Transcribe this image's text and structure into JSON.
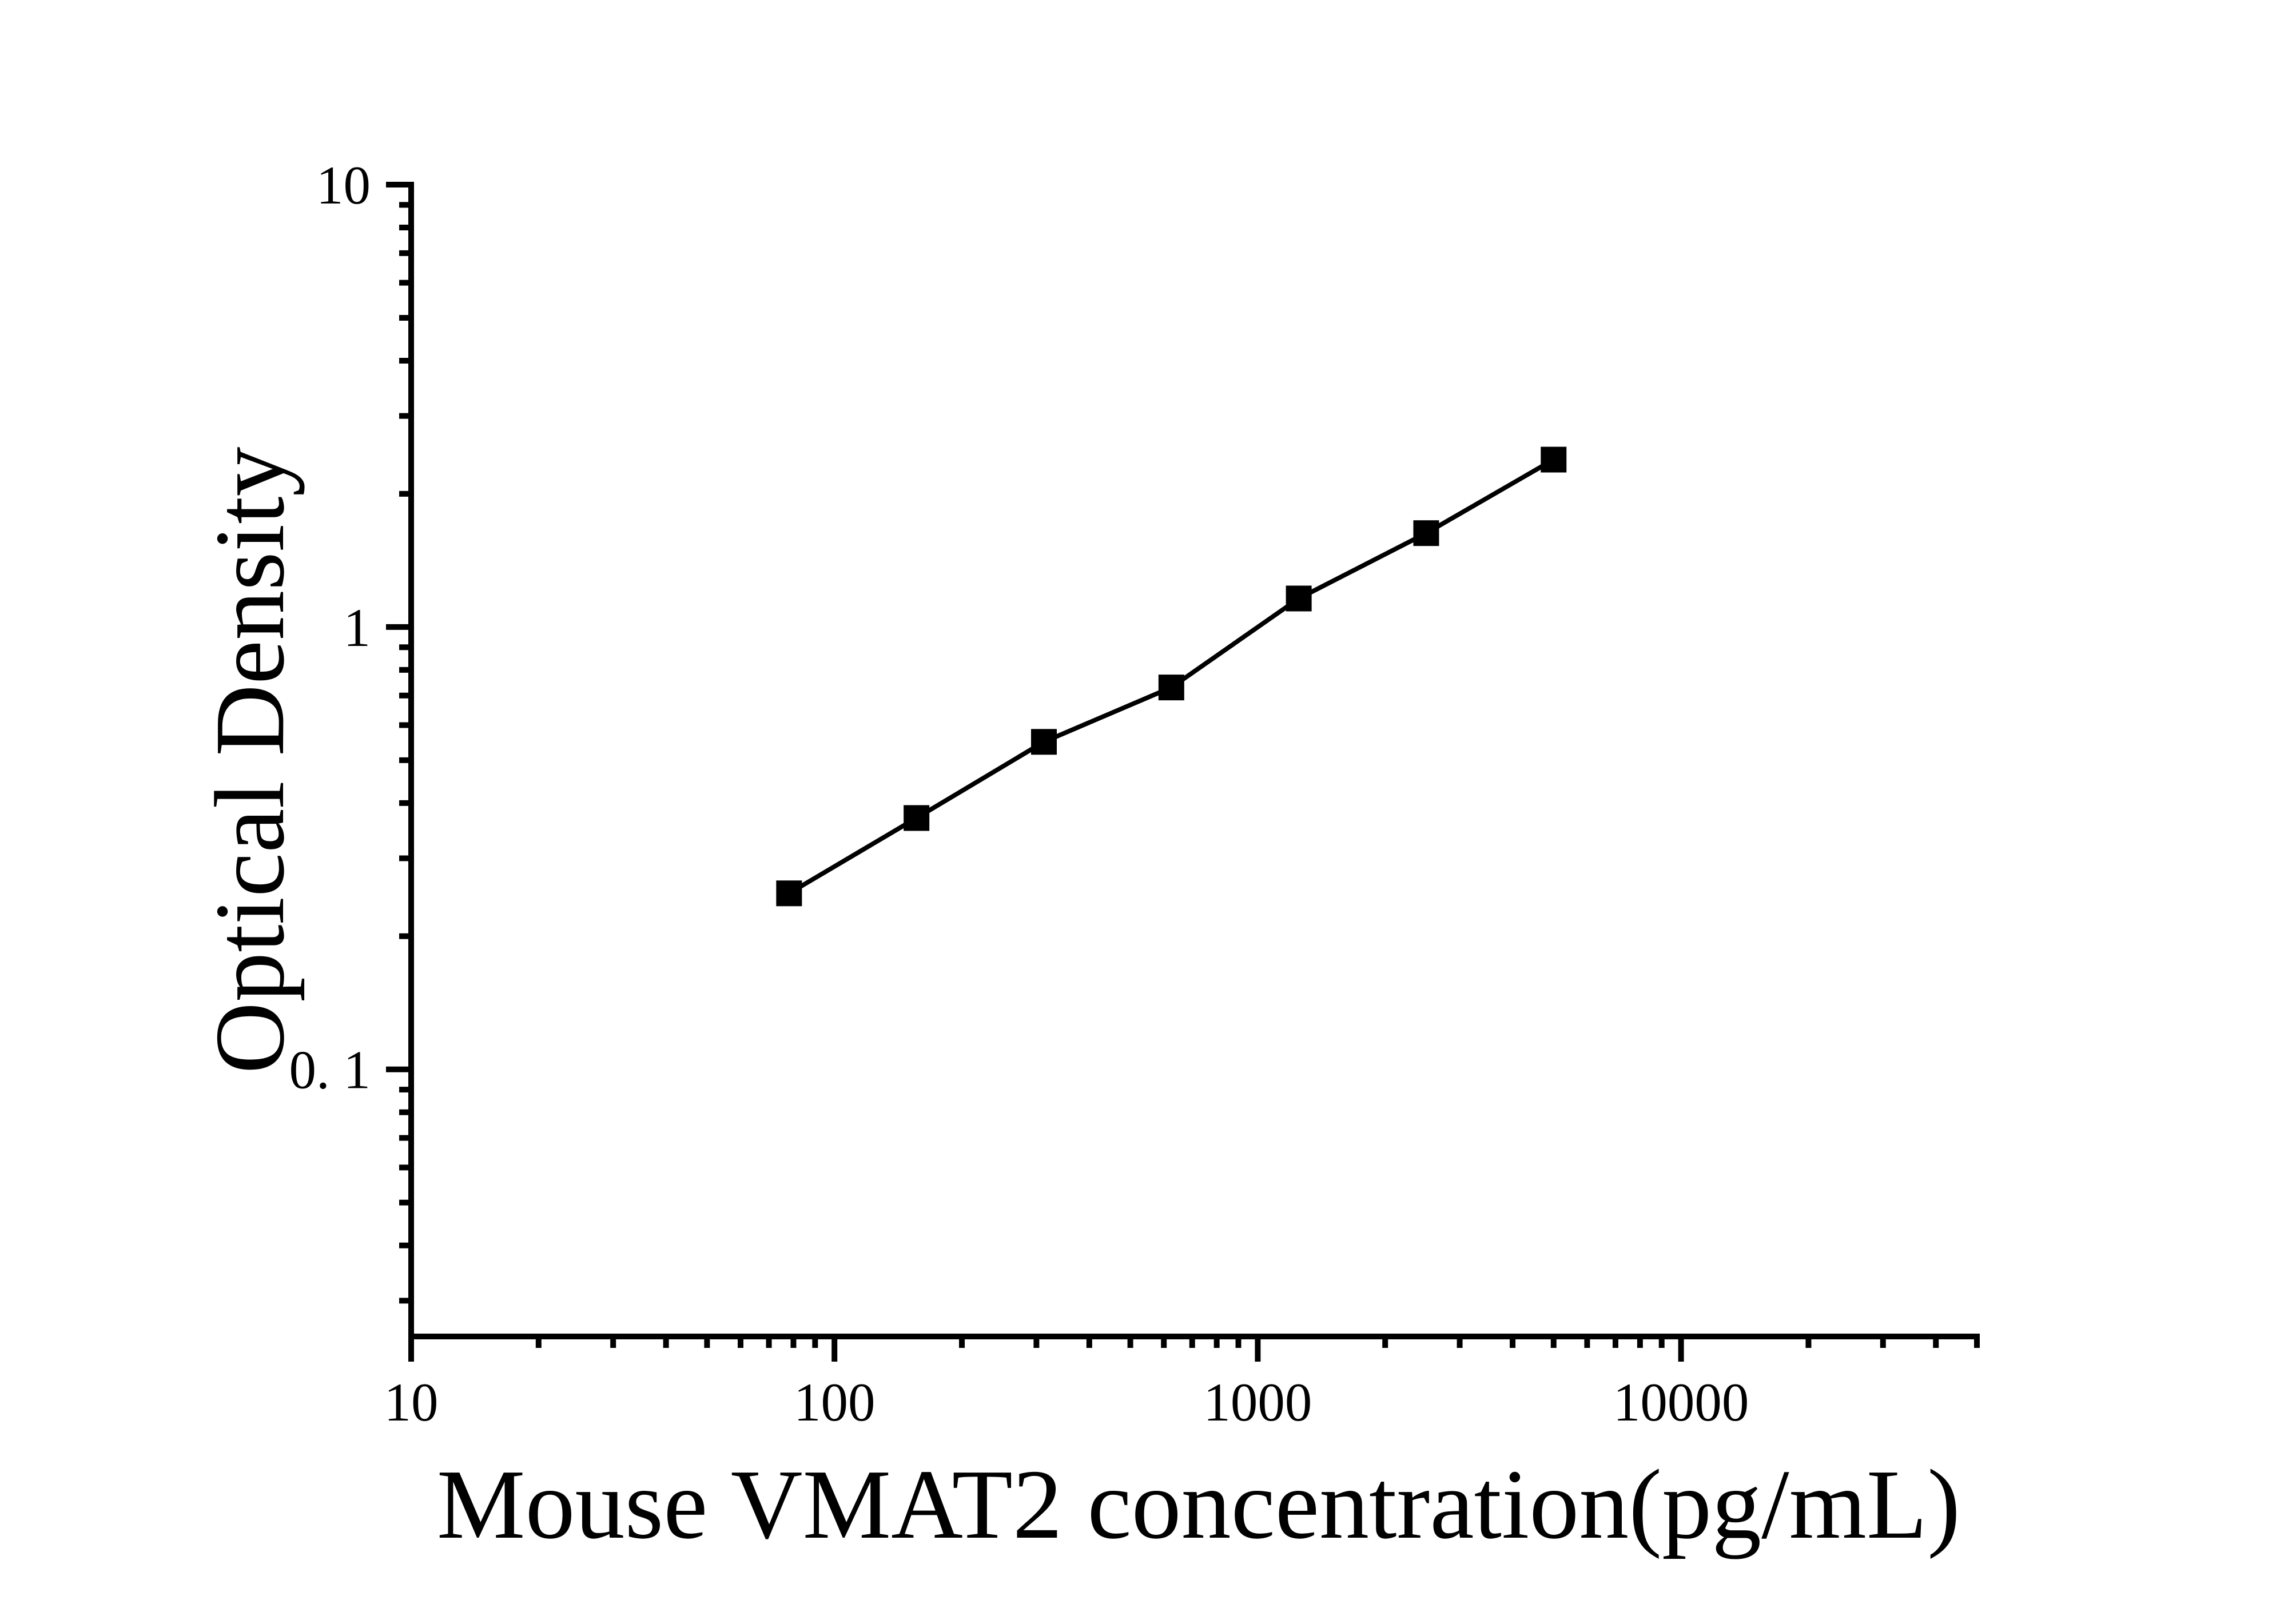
{
  "chart_data": {
    "type": "scatter",
    "title": "",
    "xlabel": "Mouse VMAT2 concentration(pg/mL)",
    "ylabel": "Optical Density",
    "x_scale": "log",
    "y_scale": "log",
    "xlim": [
      10,
      50000
    ],
    "ylim": [
      0.0249,
      10
    ],
    "grid": false,
    "legend_position": "none",
    "axis_color": "#000000",
    "background_color": "#ffffff",
    "x_major_ticks": [
      {
        "value": 10,
        "label": "10"
      },
      {
        "value": 100,
        "label": "100"
      },
      {
        "value": 1000,
        "label": "1000"
      },
      {
        "value": 10000,
        "label": "10000"
      }
    ],
    "x_minor_ticks": [
      20,
      30,
      40,
      50,
      60,
      70,
      80,
      90,
      200,
      300,
      400,
      500,
      600,
      700,
      800,
      900,
      2000,
      3000,
      4000,
      5000,
      6000,
      7000,
      8000,
      9000,
      20000,
      30000,
      40000,
      50000
    ],
    "y_major_ticks": [
      {
        "value": 10,
        "label": "10"
      },
      {
        "value": 1,
        "label": "1"
      },
      {
        "value": 0.1,
        "label": "0. 1"
      }
    ],
    "y_minor_ticks": [
      9,
      8,
      7,
      6,
      5,
      4,
      3,
      2,
      0.9,
      0.8,
      0.7,
      0.6,
      0.5,
      0.4,
      0.3,
      0.2,
      0.09,
      0.08,
      0.07,
      0.06,
      0.05,
      0.04,
      0.03
    ],
    "series": [
      {
        "name": "standard-curve",
        "marker": "filled-square",
        "line": "solid",
        "color": "#000000",
        "points": [
          {
            "x": 78.125,
            "y": 0.25
          },
          {
            "x": 156.25,
            "y": 0.37
          },
          {
            "x": 312.5,
            "y": 0.55
          },
          {
            "x": 625,
            "y": 0.73
          },
          {
            "x": 1250,
            "y": 1.16
          },
          {
            "x": 2500,
            "y": 1.63
          },
          {
            "x": 5000,
            "y": 2.39
          }
        ]
      }
    ]
  }
}
